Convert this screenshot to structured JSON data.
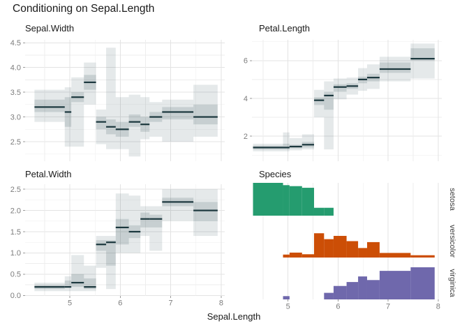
{
  "title": "Conditioning on Sepal.Length",
  "x_axis": {
    "label": "Sepal.Length",
    "ticks": [
      5,
      6,
      7,
      8
    ],
    "grid_major": [
      5,
      6,
      7,
      8
    ],
    "grid_minor": [
      4.5,
      5.5,
      6.5,
      7.5
    ]
  },
  "colors": {
    "median": "#1b373d",
    "box_rgb": "55,85,90",
    "grid_major": "#e3e3e3",
    "grid_minor": "#ededed",
    "tick_mark": "#9a9a9a",
    "tick_text": "#7c7c7c",
    "strip_text": "#3d3d3d"
  },
  "chart_data": {
    "type": "conditional-summary-grid",
    "conditioning_variable": "Sepal.Length",
    "x_bin_edges": [
      4.3,
      4.9,
      5.03,
      5.28,
      5.52,
      5.72,
      5.91,
      6.17,
      6.4,
      6.58,
      6.83,
      7.45,
      7.93
    ],
    "panels": [
      {
        "kind": "interval",
        "title": "Sepal.Width",
        "ylim": [
          2.105,
          4.56
        ],
        "yticks": [
          {
            "v": 2.5,
            "t": "2.5"
          },
          {
            "v": 3.0,
            "t": "3.0"
          },
          {
            "v": 3.5,
            "t": "3.5"
          },
          {
            "v": 4.0,
            "t": "4.0"
          },
          {
            "v": 4.5,
            "t": "4.5"
          }
        ],
        "grid_major": [
          2.5,
          3.0,
          3.5,
          4.0,
          4.5
        ],
        "grid_minor": [
          2.25,
          2.75,
          3.25,
          3.75,
          4.25
        ],
        "median": [
          3.2,
          3.1,
          3.4,
          3.7,
          2.9,
          2.8,
          2.75,
          2.9,
          2.85,
          3.0,
          3.1,
          3.0
        ],
        "q1": [
          3.1,
          2.8,
          3.3,
          3.55,
          2.75,
          2.65,
          2.6,
          2.8,
          2.7,
          2.9,
          2.95,
          2.85
        ],
        "q3": [
          3.35,
          3.4,
          3.5,
          3.85,
          3.0,
          2.95,
          2.9,
          3.05,
          3.0,
          3.1,
          3.2,
          3.25
        ],
        "lo": [
          2.9,
          2.4,
          2.4,
          3.25,
          2.45,
          2.35,
          2.35,
          2.2,
          2.55,
          2.6,
          2.5,
          2.6
        ],
        "hi": [
          3.55,
          3.6,
          3.8,
          4.1,
          3.15,
          4.4,
          3.4,
          3.45,
          3.4,
          3.3,
          3.35,
          3.65
        ]
      },
      {
        "kind": "interval",
        "title": "Petal.Length",
        "ylim": [
          0.675,
          7.1
        ],
        "yticks": [
          {
            "v": 2,
            "t": "2"
          },
          {
            "v": 4,
            "t": "4"
          },
          {
            "v": 6,
            "t": "6"
          }
        ],
        "grid_major": [
          2,
          4,
          6
        ],
        "grid_minor": [
          1,
          3,
          5,
          7
        ],
        "median": [
          1.4,
          1.4,
          1.45,
          1.55,
          3.9,
          4.15,
          4.6,
          4.65,
          5.0,
          5.1,
          5.55,
          6.1
        ],
        "q1": [
          1.3,
          1.3,
          1.35,
          1.4,
          3.65,
          3.4,
          4.35,
          4.5,
          4.8,
          4.9,
          5.35,
          6.0
        ],
        "q3": [
          1.5,
          1.6,
          1.55,
          1.7,
          4.05,
          4.35,
          4.75,
          4.8,
          5.15,
          5.3,
          5.9,
          6.65
        ],
        "lo": [
          1.2,
          1.2,
          1.25,
          1.3,
          3.0,
          1.3,
          3.95,
          4.2,
          4.4,
          4.5,
          4.9,
          5.05
        ],
        "hi": [
          1.6,
          2.2,
          1.9,
          2.1,
          4.45,
          4.9,
          5.05,
          5.1,
          5.6,
          5.8,
          6.2,
          6.9
        ]
      },
      {
        "kind": "interval",
        "title": "Petal.Width",
        "ylim": [
          -0.012,
          2.617
        ],
        "yticks": [
          {
            "v": 0.0,
            "t": "0.0"
          },
          {
            "v": 0.5,
            "t": "0.5"
          },
          {
            "v": 1.0,
            "t": "1.0"
          },
          {
            "v": 1.5,
            "t": "1.5"
          },
          {
            "v": 2.0,
            "t": "2.0"
          },
          {
            "v": 2.5,
            "t": "2.5"
          }
        ],
        "grid_major": [
          0.0,
          0.5,
          1.0,
          1.5,
          2.0,
          2.5
        ],
        "grid_minor": [
          0.25,
          0.75,
          1.25,
          1.75,
          2.25
        ],
        "median": [
          0.2,
          0.2,
          0.3,
          0.2,
          1.2,
          1.25,
          1.6,
          1.5,
          1.8,
          1.8,
          2.2,
          2.0
        ],
        "q1": [
          0.15,
          0.2,
          0.2,
          0.15,
          1.05,
          0.7,
          1.2,
          1.35,
          1.6,
          1.6,
          2.1,
          1.75
        ],
        "q3": [
          0.25,
          0.35,
          0.5,
          0.4,
          1.3,
          1.3,
          1.8,
          1.65,
          1.95,
          1.9,
          2.3,
          2.2
        ],
        "lo": [
          0.1,
          0.1,
          0.1,
          0.1,
          0.65,
          0.15,
          1.0,
          1.0,
          1.4,
          1.05,
          1.75,
          1.4
        ],
        "hi": [
          0.3,
          0.45,
          0.95,
          0.7,
          1.4,
          1.4,
          2.4,
          2.35,
          2.1,
          2.1,
          2.5,
          2.5
        ]
      },
      {
        "kind": "histogram-rows",
        "title": "Species",
        "rows": [
          {
            "label": "setosa",
            "color": "#259c6f",
            "heights": [
              1.0,
              0.93,
              0.9,
              0.85,
              0.24,
              0.24,
              0,
              0,
              0,
              0,
              0,
              0
            ]
          },
          {
            "label": "versicolor",
            "color": "#cc4e06",
            "heights": [
              0,
              0.09,
              0.15,
              0.1,
              0.74,
              0.56,
              0.66,
              0.5,
              0.29,
              0.47,
              0.14,
              0.07
            ]
          },
          {
            "label": "virginica",
            "color": "#6f68ac",
            "heights": [
              0,
              0.1,
              0,
              0,
              0,
              0.2,
              0.41,
              0.53,
              0.7,
              0.59,
              0.87,
              0.98
            ]
          }
        ]
      }
    ]
  }
}
